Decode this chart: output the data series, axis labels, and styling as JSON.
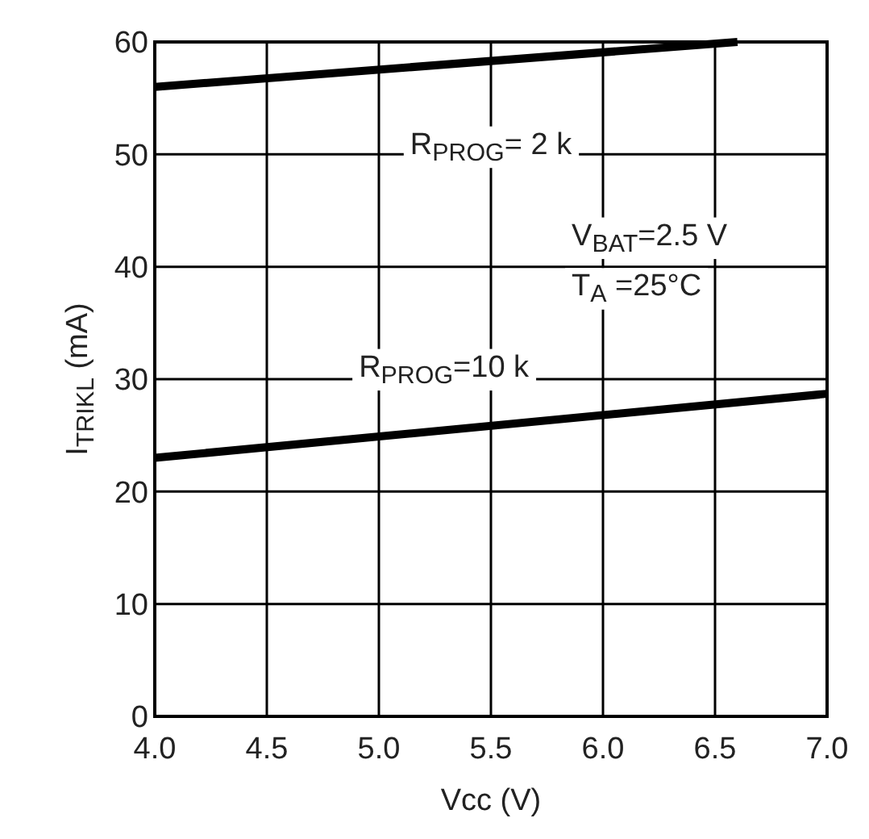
{
  "chart_data": {
    "type": "line",
    "xlabel": "Vcc (V)",
    "ylabel": "I$_{TRIKL}$ (mA)",
    "xlim": [
      4.0,
      7.0
    ],
    "xticks": [
      {
        "value": 4,
        "label": "4.0"
      },
      {
        "value": 4.5,
        "label": "4.5"
      },
      {
        "value": 5,
        "label": "5.0"
      },
      {
        "value": 5.5,
        "label": "5.5"
      },
      {
        "value": 6,
        "label": "6.0"
      },
      {
        "value": 6.5,
        "label": "6.5"
      },
      {
        "value": 7,
        "label": "7.0"
      }
    ],
    "ylim": [
      0,
      60
    ],
    "yticks": [
      0,
      10,
      20,
      30,
      40,
      50,
      60
    ],
    "grid": true,
    "line_style": "solid",
    "marker": "none",
    "series": [
      {
        "x": [
          4.0,
          6.6
        ],
        "color": "#000000",
        "values": [
          56,
          60
        ]
      },
      {
        "x": [
          4.0,
          7.0
        ],
        "color": "#000000",
        "values": [
          23,
          28.7
        ]
      }
    ],
    "annotations": [
      "R$_{PROG}$= 2 k",
      "R$_{PROG}$=10 k",
      "V$_{BAT}$=2.5 V",
      "T$_{A}$ =25°C"
    ]
  }
}
